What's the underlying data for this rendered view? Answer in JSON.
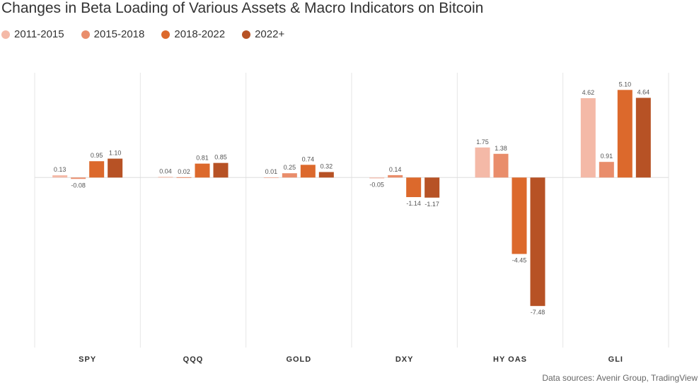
{
  "chart_data": {
    "type": "bar",
    "title": "Changes in Beta Loading of Various Assets & Macro Indicators on Bitcoin",
    "categories": [
      "SPY",
      "QQQ",
      "GOLD",
      "DXY",
      "HY OAS",
      "GLI"
    ],
    "series": [
      {
        "name": "2011-2015",
        "color": "#f4b9a7",
        "values": [
          0.13,
          0.04,
          0.01,
          -0.05,
          1.75,
          4.62
        ],
        "labels": [
          "0.13",
          "0.04",
          "0.01",
          "-0.05",
          "1.75",
          "4.62"
        ]
      },
      {
        "name": "2015-2018",
        "color": "#e98d6b",
        "values": [
          -0.08,
          0.02,
          0.25,
          0.14,
          1.38,
          0.91
        ],
        "labels": [
          "-0.08",
          "0.02",
          "0.25",
          "0.14",
          "1.38",
          "0.91"
        ]
      },
      {
        "name": "2018-2022",
        "color": "#dc692c",
        "values": [
          0.95,
          0.81,
          0.74,
          -1.14,
          -4.45,
          5.1
        ],
        "labels": [
          "0.95",
          "0.81",
          "0.74",
          "-1.14",
          "-4.45",
          "5.10"
        ]
      },
      {
        "name": "2022+",
        "color": "#b75225",
        "values": [
          1.1,
          0.85,
          0.32,
          -1.17,
          -7.48,
          4.64
        ],
        "labels": [
          "1.10",
          "0.85",
          "0.32",
          "-1.17",
          "-7.48",
          "4.64"
        ]
      }
    ],
    "ylim": [
      -9.9,
      6.1
    ],
    "grid": false,
    "legend_position": "top-left",
    "source": "Data sources: Avenir Group, TradingView"
  }
}
